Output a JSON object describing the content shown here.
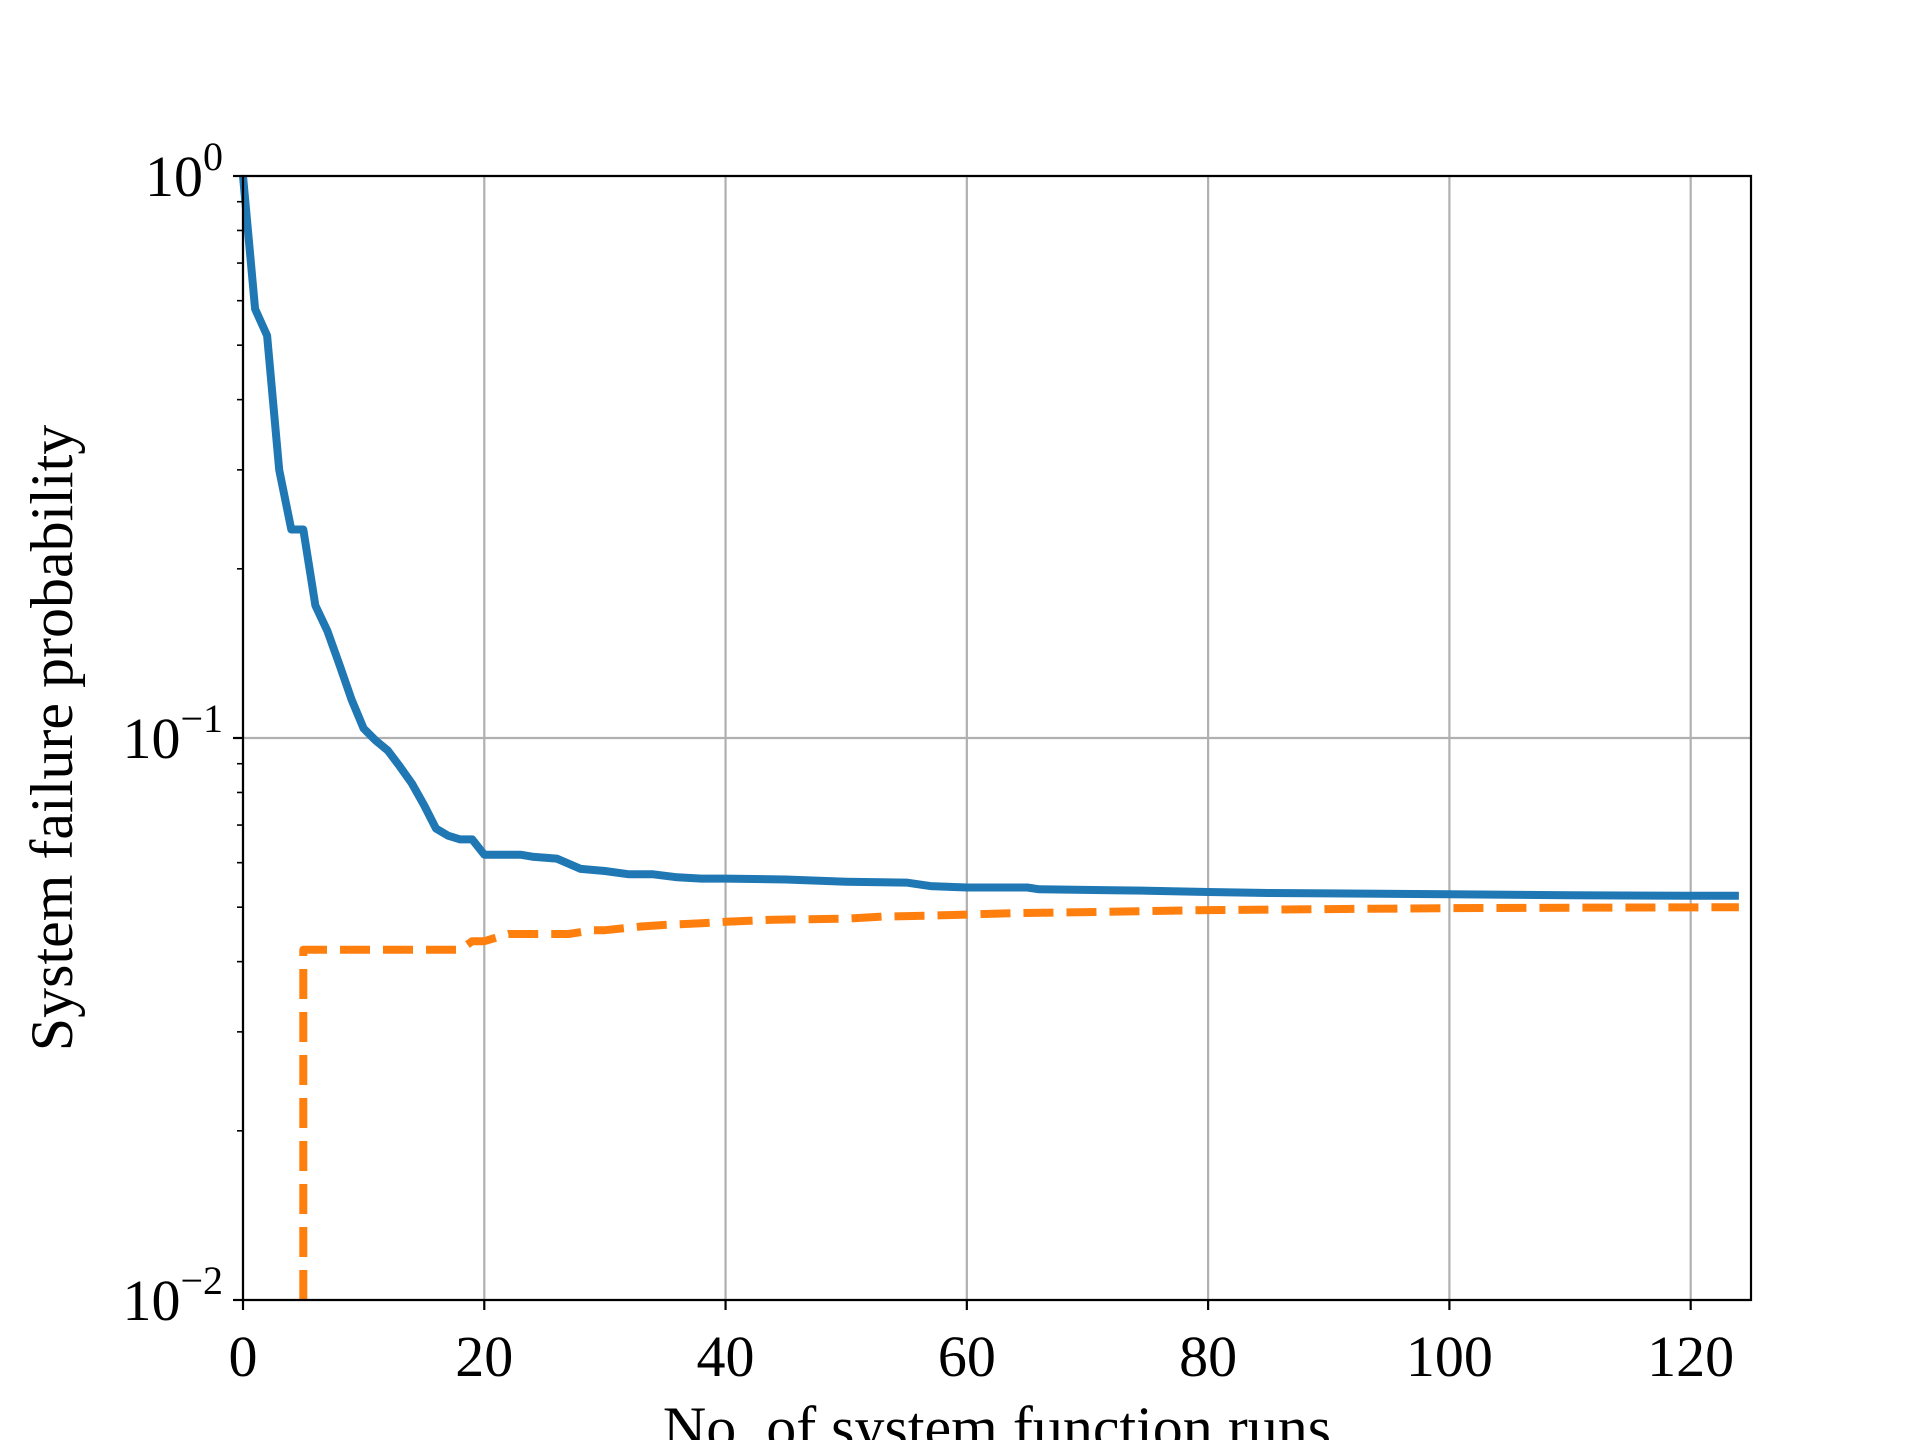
{
  "chart_data": {
    "type": "line",
    "xlabel": "No. of system function runs",
    "ylabel": "System failure probability",
    "x_scale": "linear",
    "y_scale": "log",
    "xlim": [
      0,
      125
    ],
    "ylim": [
      0.01,
      1
    ],
    "x_ticks": [
      {
        "value": 0,
        "label": "0"
      },
      {
        "value": 20,
        "label": "20"
      },
      {
        "value": 40,
        "label": "40"
      },
      {
        "value": 60,
        "label": "60"
      },
      {
        "value": 80,
        "label": "80"
      },
      {
        "value": 100,
        "label": "100"
      },
      {
        "value": 120,
        "label": "120"
      }
    ],
    "y_ticks": [
      {
        "value": 1,
        "base": "10",
        "exp": "0"
      },
      {
        "value": 0.1,
        "base": "10",
        "exp": "−1"
      },
      {
        "value": 0.01,
        "base": "10",
        "exp": "−2"
      }
    ],
    "grid": true,
    "series": [
      {
        "color": "#1f77b4",
        "style": "solid",
        "points": [
          [
            0,
            1.0
          ],
          [
            1,
            0.58
          ],
          [
            2,
            0.52
          ],
          [
            3,
            0.3
          ],
          [
            4,
            0.235
          ],
          [
            5,
            0.235
          ],
          [
            6,
            0.172
          ],
          [
            7,
            0.155
          ],
          [
            8,
            0.135
          ],
          [
            9,
            0.117
          ],
          [
            10,
            0.104
          ],
          [
            11,
            0.099
          ],
          [
            12,
            0.095
          ],
          [
            13,
            0.089
          ],
          [
            14,
            0.083
          ],
          [
            15,
            0.076
          ],
          [
            16,
            0.069
          ],
          [
            17,
            0.067
          ],
          [
            18,
            0.066
          ],
          [
            19,
            0.066
          ],
          [
            20,
            0.062
          ],
          [
            23,
            0.062
          ],
          [
            24,
            0.0615
          ],
          [
            26,
            0.061
          ],
          [
            28,
            0.0585
          ],
          [
            30,
            0.058
          ],
          [
            32,
            0.0572
          ],
          [
            34,
            0.0572
          ],
          [
            36,
            0.0565
          ],
          [
            38,
            0.0562
          ],
          [
            40,
            0.0562
          ],
          [
            45,
            0.056
          ],
          [
            50,
            0.0555
          ],
          [
            55,
            0.0553
          ],
          [
            57,
            0.0545
          ],
          [
            60,
            0.0542
          ],
          [
            65,
            0.0542
          ],
          [
            66,
            0.0538
          ],
          [
            72,
            0.0536
          ],
          [
            75,
            0.0535
          ],
          [
            80,
            0.0532
          ],
          [
            85,
            0.053
          ],
          [
            90,
            0.0529
          ],
          [
            100,
            0.0527
          ],
          [
            110,
            0.0525
          ],
          [
            120,
            0.0524
          ],
          [
            124,
            0.0524
          ]
        ]
      },
      {
        "color": "#ff7f0e",
        "style": "dashed",
        "points": [
          [
            5,
            0.01
          ],
          [
            5,
            0.042
          ],
          [
            18,
            0.042
          ],
          [
            19,
            0.0435
          ],
          [
            20,
            0.0435
          ],
          [
            22,
            0.0448
          ],
          [
            27,
            0.0448
          ],
          [
            29,
            0.0455
          ],
          [
            30,
            0.0455
          ],
          [
            33,
            0.0462
          ],
          [
            35,
            0.0465
          ],
          [
            38,
            0.0468
          ],
          [
            40,
            0.0471
          ],
          [
            44,
            0.0475
          ],
          [
            50,
            0.0477
          ],
          [
            53,
            0.0481
          ],
          [
            57,
            0.0483
          ],
          [
            60,
            0.0485
          ],
          [
            64,
            0.0488
          ],
          [
            70,
            0.049
          ],
          [
            75,
            0.0492
          ],
          [
            80,
            0.0494
          ],
          [
            90,
            0.0496
          ],
          [
            100,
            0.0498
          ],
          [
            110,
            0.0499
          ],
          [
            124,
            0.05
          ]
        ]
      }
    ]
  }
}
